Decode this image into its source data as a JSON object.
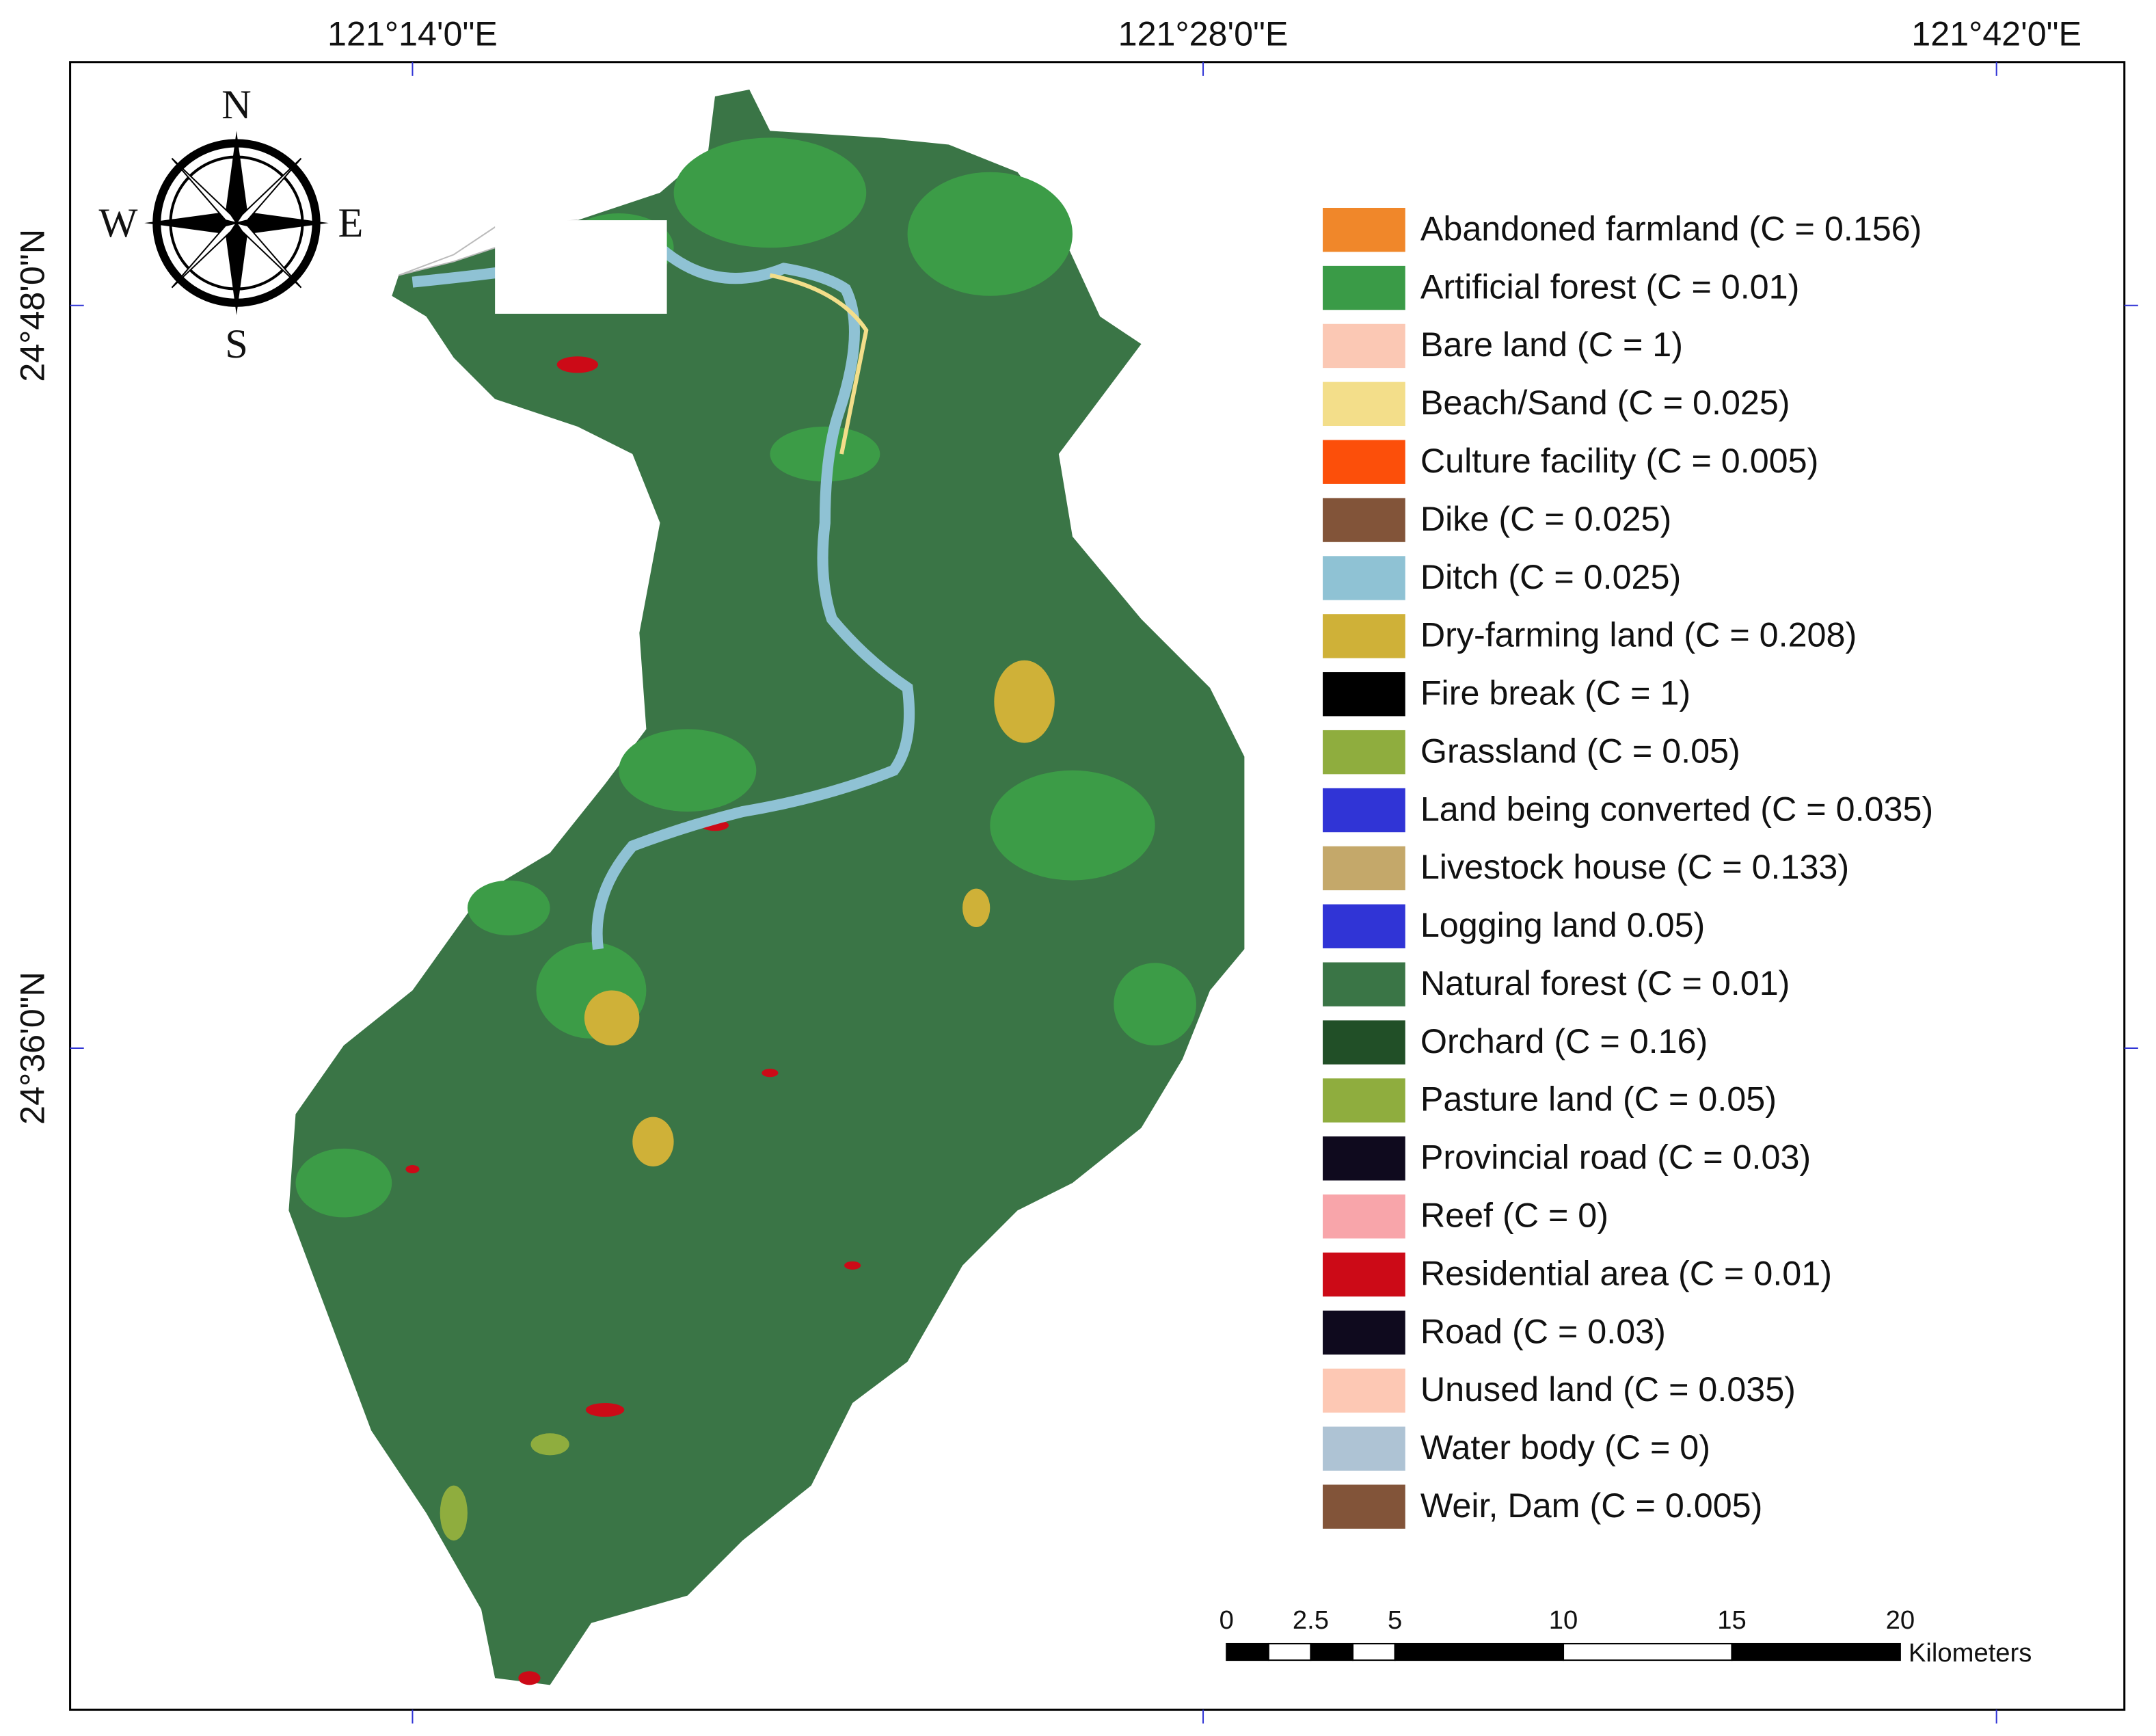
{
  "graticule": {
    "longitudes": [
      "121°14'0\"E",
      "121°28'0\"E",
      "121°42'0\"E"
    ],
    "latitudes": [
      "24°48'0\"N",
      "24°36'0\"N"
    ]
  },
  "compass": {
    "north": "N",
    "east": "E",
    "south": "S",
    "west": "W"
  },
  "legend": {
    "items": [
      {
        "label": "Abandoned farmland (C = 0.156)",
        "color": "#f0872a"
      },
      {
        "label": "Artificial forest (C = 0.01)",
        "color": "#3a9b47"
      },
      {
        "label": "Bare land (C = 1)",
        "color": "#fbc8b4"
      },
      {
        "label": "Beach/Sand (C = 0.025)",
        "color": "#f3de8a"
      },
      {
        "label": "Culture facility (C = 0.005)",
        "color": "#fc4f0a"
      },
      {
        "label": "Dike (C = 0.025)",
        "color": "#825439"
      },
      {
        "label": "Ditch (C = 0.025)",
        "color": "#8fc2d4"
      },
      {
        "label": "Dry-farming land (C = 0.208)",
        "color": "#cfb138"
      },
      {
        "label": "Fire break (C = 1)",
        "color": "#000000"
      },
      {
        "label": "Grassland (C = 0.05)",
        "color": "#8fad3e"
      },
      {
        "label": "Land being converted (C = 0.035)",
        "color": "#3034d6"
      },
      {
        "label": "Livestock house (C = 0.133)",
        "color": "#c4a86a"
      },
      {
        "label": "Logging land 0.05)",
        "color": "#3034d6"
      },
      {
        "label": "Natural forest (C = 0.01)",
        "color": "#3a7546"
      },
      {
        "label": "Orchard (C = 0.16)",
        "color": "#214f27"
      },
      {
        "label": "Pasture land (C = 0.05)",
        "color": "#8fad3e"
      },
      {
        "label": "Provincial road (C = 0.03)",
        "color": "#0f0a1e"
      },
      {
        "label": "Reef (C = 0)",
        "color": "#f8a5aa"
      },
      {
        "label": "Residential area (C = 0.01)",
        "color": "#cc0a17"
      },
      {
        "label": "Road (C = 0.03)",
        "color": "#0f0a1e"
      },
      {
        "label": "Unused land (C = 0.035)",
        "color": "#fdc8b4"
      },
      {
        "label": "Water body (C = 0)",
        "color": "#aec3d4"
      },
      {
        "label": "Weir, Dam (C = 0.005)",
        "color": "#825439"
      }
    ]
  },
  "scale_bar": {
    "ticks": [
      0,
      2.5,
      5,
      10,
      15,
      20
    ],
    "unit": "Kilometers"
  }
}
